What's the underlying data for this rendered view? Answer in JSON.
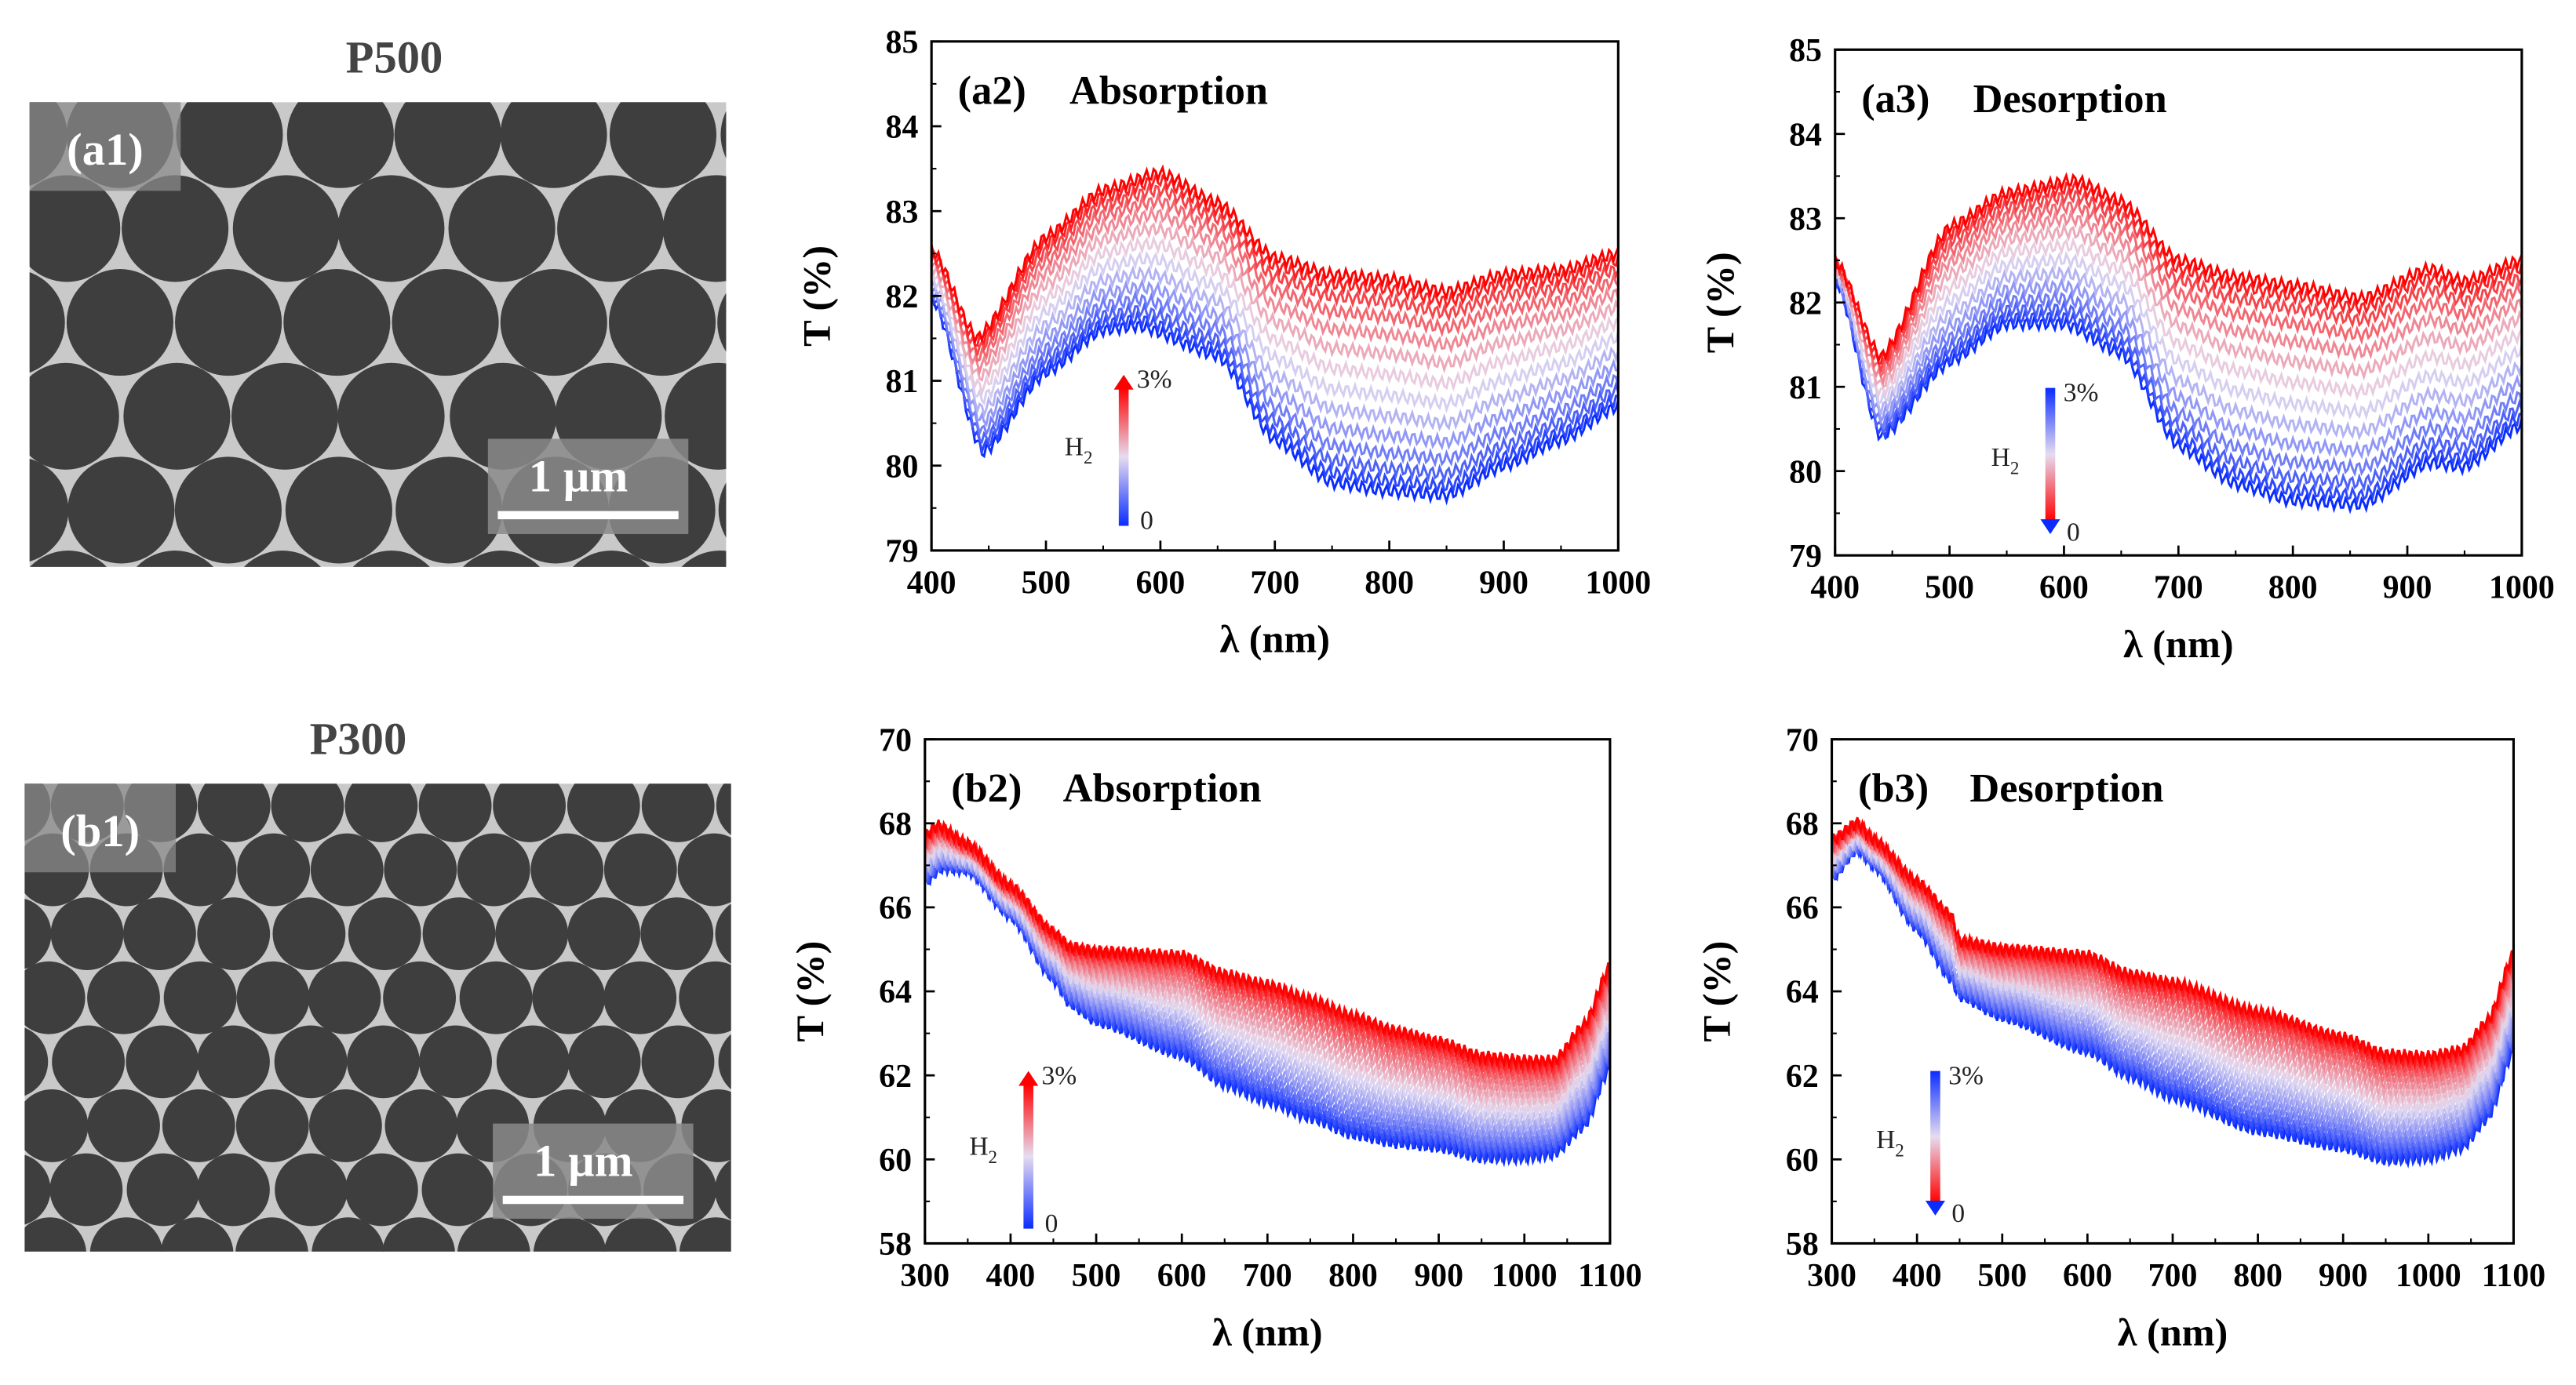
{
  "sem": [
    {
      "title": "P500",
      "label": "(a1)",
      "scale": "1 µm"
    },
    {
      "title": "P300",
      "label": "(b1)",
      "scale": "1 µm"
    }
  ],
  "chart_data": [
    {
      "type": "line",
      "id": "a2",
      "panel": "(a2)",
      "title": "Absorption",
      "xlabel": "λ (nm)",
      "ylabel": "T (%)",
      "xlim": [
        400,
        1000
      ],
      "ylim": [
        79,
        85
      ],
      "xticks": [
        400,
        500,
        600,
        700,
        800,
        900,
        1000
      ],
      "yticks": [
        79,
        80,
        81,
        82,
        83,
        84,
        85
      ],
      "legend": {
        "label_main": "H",
        "label_sub": "2",
        "high": "3%",
        "low": "0",
        "direction": "up"
      },
      "n_curves": 14,
      "top_curve": {
        "name": "3% H2",
        "x": [
          400,
          440,
          500,
          550,
          600,
          650,
          700,
          750,
          800,
          850,
          900,
          950,
          1000
        ],
        "y": [
          82.55,
          81.5,
          82.7,
          83.25,
          83.45,
          83.1,
          82.45,
          82.25,
          82.2,
          82.05,
          82.25,
          82.3,
          82.5
        ]
      },
      "bottom_curve": {
        "name": "0 H2",
        "x": [
          400,
          445,
          500,
          550,
          580,
          650,
          700,
          750,
          800,
          850,
          900,
          950,
          1000
        ],
        "y": [
          82.0,
          80.15,
          81.1,
          81.6,
          81.65,
          81.3,
          80.3,
          79.8,
          79.7,
          79.65,
          80.0,
          80.3,
          80.7
        ]
      }
    },
    {
      "type": "line",
      "id": "a3",
      "panel": "(a3)",
      "title": "Desorption",
      "xlabel": "λ (nm)",
      "ylabel": "T (%)",
      "xlim": [
        400,
        1000
      ],
      "ylim": [
        79,
        85
      ],
      "xticks": [
        400,
        500,
        600,
        700,
        800,
        900,
        1000
      ],
      "yticks": [
        79,
        80,
        81,
        82,
        83,
        84,
        85
      ],
      "legend": {
        "label_main": "H",
        "label_sub": "2",
        "high": "3%",
        "low": "0",
        "direction": "down"
      },
      "n_curves": 14,
      "top_curve": {
        "name": "3% H2",
        "x": [
          400,
          440,
          500,
          550,
          610,
          650,
          700,
          750,
          800,
          860,
          920,
          950,
          1000
        ],
        "y": [
          82.5,
          81.35,
          82.9,
          83.3,
          83.45,
          83.2,
          82.5,
          82.3,
          82.2,
          82.05,
          82.4,
          82.25,
          82.5
        ]
      },
      "bottom_curve": {
        "name": "0 H2",
        "x": [
          400,
          440,
          500,
          550,
          600,
          650,
          700,
          750,
          800,
          860,
          920,
          950,
          1000
        ],
        "y": [
          82.3,
          80.4,
          81.3,
          81.75,
          81.75,
          81.4,
          80.3,
          79.85,
          79.65,
          79.6,
          80.1,
          80.05,
          80.55
        ]
      }
    },
    {
      "type": "line",
      "id": "b2",
      "panel": "(b2)",
      "title": "Absorption",
      "xlabel": "λ (nm)",
      "ylabel": "T (%)",
      "xlim": [
        300,
        1100
      ],
      "ylim": [
        58,
        70
      ],
      "xticks": [
        300,
        400,
        500,
        600,
        700,
        800,
        900,
        1000,
        1100
      ],
      "yticks": [
        58,
        60,
        62,
        64,
        66,
        68,
        70
      ],
      "legend": {
        "label_main": "H",
        "label_sub": "2",
        "high": "3%",
        "low": "0",
        "direction": "up"
      },
      "n_curves": 20,
      "top_curve": {
        "name": "3% H2",
        "x": [
          300,
          315,
          350,
          400,
          450,
          470,
          500,
          600,
          650,
          700,
          750,
          800,
          850,
          900,
          950,
          1000,
          1035,
          1070,
          1100
        ],
        "y": [
          67.7,
          67.95,
          67.5,
          66.5,
          65.4,
          65.05,
          64.95,
          64.85,
          64.4,
          64.15,
          63.8,
          63.4,
          63.05,
          62.8,
          62.45,
          62.35,
          62.35,
          63.2,
          64.6
        ]
      },
      "bottom_curve": {
        "name": "0 H2",
        "x": [
          300,
          320,
          350,
          400,
          450,
          470,
          500,
          600,
          650,
          700,
          750,
          800,
          850,
          900,
          950,
          1000,
          1035,
          1070,
          1100
        ],
        "y": [
          66.6,
          66.95,
          66.9,
          65.8,
          64.3,
          63.7,
          63.3,
          62.5,
          61.8,
          61.4,
          61.0,
          60.6,
          60.4,
          60.3,
          60.05,
          60.05,
          60.15,
          60.8,
          62.2
        ]
      }
    },
    {
      "type": "line",
      "id": "b3",
      "panel": "(b3)",
      "title": "Desorption",
      "xlabel": "λ (nm)",
      "ylabel": "T (%)",
      "xlim": [
        300,
        1100
      ],
      "ylim": [
        58,
        70
      ],
      "xticks": [
        300,
        400,
        500,
        600,
        700,
        800,
        900,
        1000,
        1100
      ],
      "yticks": [
        58,
        60,
        62,
        64,
        66,
        68,
        70
      ],
      "legend": {
        "label_main": "H",
        "label_sub": "2",
        "high": "3%",
        "low": "0",
        "direction": "down"
      },
      "n_curves": 20,
      "top_curve": {
        "name": "3% H2",
        "x": [
          300,
          330,
          350,
          400,
          440,
          450,
          500,
          600,
          650,
          700,
          800,
          900,
          950,
          1000,
          1040,
          1070,
          1100
        ],
        "y": [
          67.6,
          68.0,
          67.6,
          66.6,
          65.8,
          65.2,
          65.0,
          64.85,
          64.4,
          64.2,
          63.5,
          62.9,
          62.5,
          62.45,
          62.6,
          63.3,
          64.9
        ]
      },
      "bottom_curve": {
        "name": "0 H2",
        "x": [
          300,
          330,
          350,
          400,
          440,
          450,
          500,
          600,
          650,
          700,
          800,
          900,
          950,
          1000,
          1040,
          1070,
          1100
        ],
        "y": [
          66.7,
          67.4,
          67.0,
          65.5,
          64.3,
          63.9,
          63.4,
          62.6,
          62.0,
          61.5,
          60.7,
          60.3,
          60.0,
          60.05,
          60.3,
          61.0,
          62.6
        ]
      }
    }
  ],
  "colors": {
    "low": "#0a2cff",
    "mid": "#e6dcf0",
    "high": "#ff0000"
  }
}
